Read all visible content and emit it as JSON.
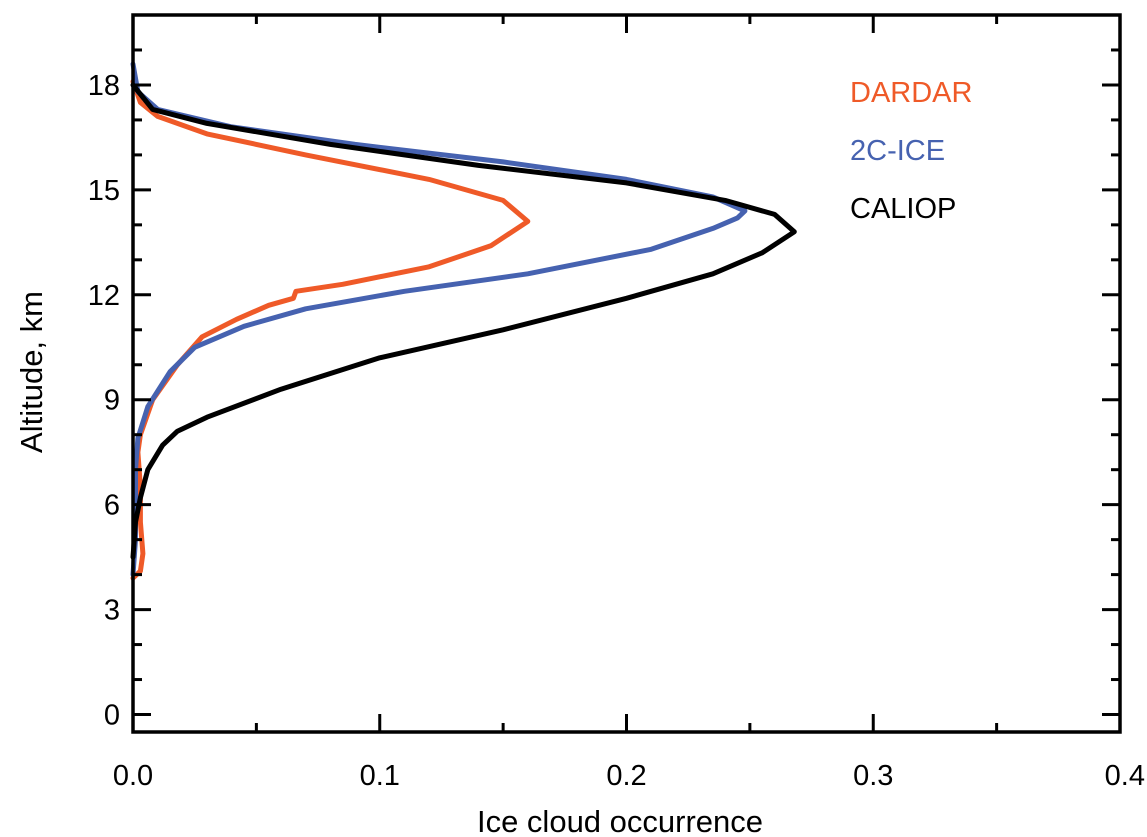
{
  "chart_data": {
    "type": "line",
    "xlabel": "Ice cloud occurrence",
    "ylabel": "Altitude, km",
    "xlim": [
      0.0,
      0.4
    ],
    "ylim": [
      -0.5,
      20
    ],
    "x_ticks": [
      "0.0",
      "0.1",
      "0.2",
      "0.3",
      "0.4"
    ],
    "y_ticks": [
      "0",
      "3",
      "6",
      "9",
      "12",
      "15",
      "18"
    ],
    "grid": false,
    "legend_position": "top-right",
    "series": [
      {
        "name": "DARDAR",
        "color": "#ef5a28",
        "points": [
          [
            0.0,
            3.9
          ],
          [
            0.003,
            4.1
          ],
          [
            0.004,
            4.6
          ],
          [
            0.003,
            5.5
          ],
          [
            0.003,
            6.5
          ],
          [
            0.002,
            7.5
          ],
          [
            0.003,
            8.0
          ],
          [
            0.008,
            9.0
          ],
          [
            0.018,
            10.0
          ],
          [
            0.028,
            10.8
          ],
          [
            0.042,
            11.3
          ],
          [
            0.055,
            11.7
          ],
          [
            0.065,
            11.9
          ],
          [
            0.066,
            12.1
          ],
          [
            0.085,
            12.3
          ],
          [
            0.12,
            12.8
          ],
          [
            0.145,
            13.4
          ],
          [
            0.16,
            14.1
          ],
          [
            0.15,
            14.7
          ],
          [
            0.12,
            15.3
          ],
          [
            0.07,
            16.0
          ],
          [
            0.03,
            16.6
          ],
          [
            0.01,
            17.1
          ],
          [
            0.003,
            17.5
          ],
          [
            0.0,
            18.1
          ]
        ]
      },
      {
        "name": "2C-ICE",
        "color": "#4662b0",
        "points": [
          [
            0.0,
            4.0
          ],
          [
            0.001,
            5.0
          ],
          [
            0.001,
            6.0
          ],
          [
            0.001,
            7.0
          ],
          [
            0.002,
            7.9
          ],
          [
            0.006,
            8.8
          ],
          [
            0.015,
            9.8
          ],
          [
            0.025,
            10.5
          ],
          [
            0.045,
            11.1
          ],
          [
            0.07,
            11.6
          ],
          [
            0.11,
            12.1
          ],
          [
            0.16,
            12.6
          ],
          [
            0.21,
            13.3
          ],
          [
            0.235,
            13.9
          ],
          [
            0.245,
            14.2
          ],
          [
            0.248,
            14.4
          ],
          [
            0.235,
            14.8
          ],
          [
            0.2,
            15.3
          ],
          [
            0.15,
            15.8
          ],
          [
            0.09,
            16.3
          ],
          [
            0.04,
            16.8
          ],
          [
            0.01,
            17.3
          ],
          [
            0.002,
            17.8
          ],
          [
            0.0,
            18.6
          ]
        ]
      },
      {
        "name": "CALIOP",
        "color": "#000000",
        "points": [
          [
            0.0,
            4.5
          ],
          [
            0.001,
            5.5
          ],
          [
            0.003,
            6.2
          ],
          [
            0.006,
            7.0
          ],
          [
            0.012,
            7.7
          ],
          [
            0.018,
            8.1
          ],
          [
            0.03,
            8.5
          ],
          [
            0.06,
            9.3
          ],
          [
            0.1,
            10.2
          ],
          [
            0.15,
            11.0
          ],
          [
            0.2,
            11.9
          ],
          [
            0.235,
            12.6
          ],
          [
            0.255,
            13.2
          ],
          [
            0.268,
            13.8
          ],
          [
            0.26,
            14.3
          ],
          [
            0.24,
            14.7
          ],
          [
            0.2,
            15.2
          ],
          [
            0.14,
            15.7
          ],
          [
            0.08,
            16.3
          ],
          [
            0.03,
            16.9
          ],
          [
            0.008,
            17.3
          ],
          [
            0.0,
            18.0
          ]
        ]
      }
    ]
  }
}
